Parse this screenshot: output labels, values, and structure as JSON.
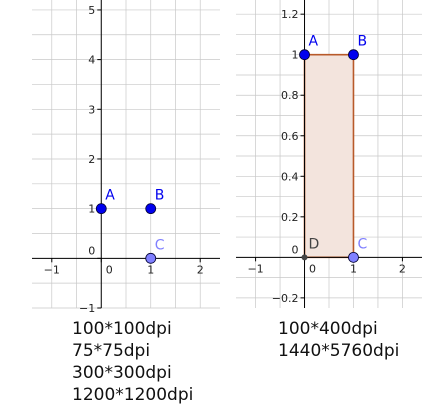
{
  "chart_data": [
    {
      "type": "scatter",
      "xlim": [
        -1.4,
        2.4
      ],
      "ylim": [
        -1.0,
        5.2
      ],
      "grid": true,
      "x_ticks": [
        -1,
        0,
        1,
        2
      ],
      "x_tick_labels": [
        "−1",
        "0",
        "1",
        "2"
      ],
      "y_ticks": [
        -1,
        0,
        1,
        2,
        3,
        4,
        5
      ],
      "y_tick_labels": [
        "−1",
        "0",
        "1",
        "2",
        "3",
        "4",
        "5"
      ],
      "points": [
        {
          "label": "A",
          "x": 0,
          "y": 1,
          "color": "#0000ee",
          "label_color": "#0000ee"
        },
        {
          "label": "B",
          "x": 1,
          "y": 1,
          "color": "#0000ee",
          "label_color": "#0000ee"
        },
        {
          "label": "C",
          "x": 1,
          "y": 0,
          "color": "#8080ff",
          "label_color": "#8080ff"
        }
      ],
      "polygon": null
    },
    {
      "type": "scatter",
      "xlim": [
        -1.4,
        2.4
      ],
      "ylim": [
        -0.25,
        1.27
      ],
      "grid": true,
      "x_ticks": [
        -1,
        0,
        1,
        2
      ],
      "x_tick_labels": [
        "−1",
        "0",
        "1",
        "2"
      ],
      "y_ticks": [
        -0.2,
        0,
        0.2,
        0.4,
        0.6,
        0.8,
        1,
        1.2
      ],
      "y_tick_labels": [
        "−0.2",
        "0",
        "0.2",
        "0.4",
        "0.6",
        "0.8",
        "1",
        "1.2"
      ],
      "points": [
        {
          "label": "A",
          "x": 0,
          "y": 1,
          "color": "#0000ee",
          "label_color": "#0000ee"
        },
        {
          "label": "B",
          "x": 1,
          "y": 1,
          "color": "#0000ee",
          "label_color": "#0000ee"
        },
        {
          "label": "C",
          "x": 1,
          "y": 0,
          "color": "#8080ff",
          "label_color": "#8080ff"
        },
        {
          "label": "D",
          "x": 0,
          "y": 0,
          "color": "#444444",
          "label_color": "#444444",
          "small": true
        }
      ],
      "polygon": {
        "vertices": [
          [
            0,
            1
          ],
          [
            1,
            1
          ],
          [
            1,
            0
          ],
          [
            0,
            0
          ]
        ],
        "fill": "#f3e4dd",
        "stroke": "#b85a2a"
      }
    }
  ],
  "captions": {
    "left": [
      "100*100dpi",
      "75*75dpi",
      "300*300dpi",
      "1200*1200dpi"
    ],
    "right": [
      "100*400dpi",
      "1440*5760dpi"
    ]
  },
  "colors": {
    "grid": "#c8c8c8",
    "axis": "#000000",
    "tick_text": "#222222"
  }
}
